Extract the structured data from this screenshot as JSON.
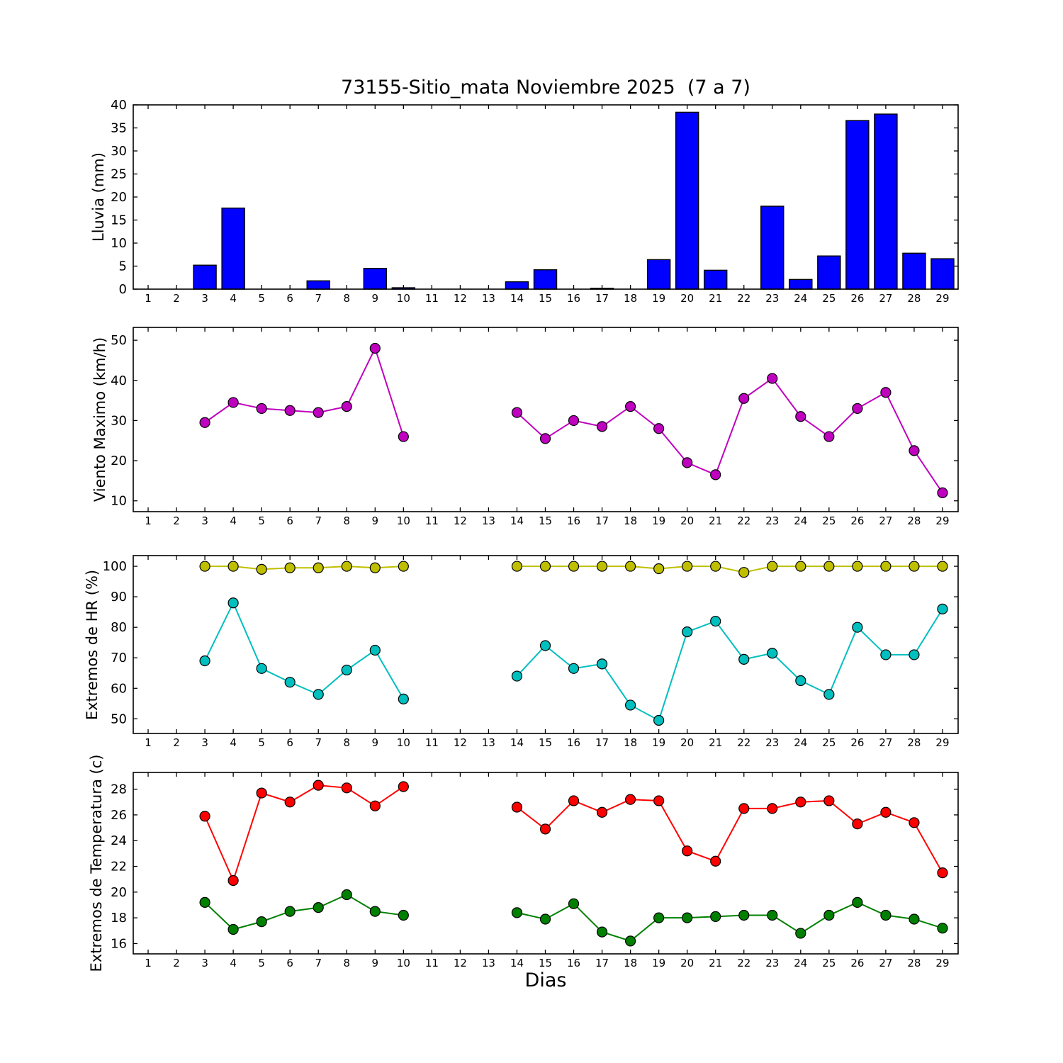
{
  "figure": {
    "title": "73155-Sitio_mata Noviembre 2025  (7 a 7)",
    "xlabel": "Dias",
    "background": "#ffffff"
  },
  "chart_data": [
    {
      "type": "bar",
      "name": "lluvia",
      "ylabel": "Lluvia (mm)",
      "color": "#0000ff",
      "categories": [
        1,
        2,
        3,
        4,
        5,
        6,
        7,
        8,
        9,
        10,
        11,
        12,
        13,
        14,
        15,
        16,
        17,
        18,
        19,
        20,
        21,
        22,
        23,
        24,
        25,
        26,
        27,
        28,
        29
      ],
      "values": [
        null,
        null,
        5.2,
        17.6,
        0,
        0,
        1.8,
        0,
        4.5,
        0.3,
        null,
        null,
        null,
        1.6,
        4.2,
        0,
        0.2,
        0,
        6.4,
        38.4,
        4.1,
        0,
        18.0,
        2.1,
        7.2,
        36.6,
        38.0,
        7.8,
        6.6
      ],
      "ylim": [
        0,
        40
      ],
      "yticks": [
        0,
        5,
        10,
        15,
        20,
        25,
        30,
        35,
        40
      ],
      "xlim": [
        0.475,
        29.55
      ],
      "grid": false
    },
    {
      "type": "line",
      "name": "viento",
      "ylabel": "Viento Maximo (km/h)",
      "categories": [
        1,
        2,
        3,
        4,
        5,
        6,
        7,
        8,
        9,
        10,
        11,
        12,
        13,
        14,
        15,
        16,
        17,
        18,
        19,
        20,
        21,
        22,
        23,
        24,
        25,
        26,
        27,
        28,
        29
      ],
      "series": [
        {
          "name": "viento-maximo",
          "color": "#bf00bf",
          "values": [
            null,
            null,
            29.5,
            34.5,
            33,
            32.5,
            32,
            33.5,
            48,
            26,
            null,
            null,
            null,
            32,
            25.5,
            30,
            28.5,
            33.5,
            28,
            19.5,
            16.5,
            35.5,
            40.5,
            31,
            26,
            33,
            37,
            22.5,
            12
          ]
        }
      ],
      "ylim": [
        7.3,
        53.2
      ],
      "yticks": [
        10,
        20,
        30,
        40,
        50
      ],
      "xlim": [
        0.475,
        29.55
      ],
      "grid": false
    },
    {
      "type": "line",
      "name": "hr",
      "ylabel": "Extremos de HR (%)",
      "categories": [
        1,
        2,
        3,
        4,
        5,
        6,
        7,
        8,
        9,
        10,
        11,
        12,
        13,
        14,
        15,
        16,
        17,
        18,
        19,
        20,
        21,
        22,
        23,
        24,
        25,
        26,
        27,
        28,
        29
      ],
      "series": [
        {
          "name": "hr-maxima",
          "color": "#bfbf00",
          "values": [
            null,
            null,
            100,
            100,
            99,
            99.5,
            99.5,
            100,
            99.5,
            100,
            null,
            null,
            null,
            100,
            100,
            100,
            100,
            100,
            99.2,
            100,
            100,
            98,
            100,
            100,
            100,
            100,
            100,
            100,
            100
          ]
        },
        {
          "name": "hr-minima",
          "color": "#00bfbf",
          "values": [
            null,
            null,
            69,
            88,
            66.5,
            62,
            58,
            66,
            72.5,
            56.5,
            null,
            null,
            null,
            64,
            74,
            66.5,
            68,
            54.5,
            49.5,
            78.5,
            82,
            69.5,
            71.5,
            62.5,
            58,
            80,
            71,
            71,
            86
          ]
        }
      ],
      "ylim": [
        45.2,
        103.5
      ],
      "yticks": [
        50,
        60,
        70,
        80,
        90,
        100
      ],
      "xlim": [
        0.475,
        29.55
      ],
      "grid": false
    },
    {
      "type": "line",
      "name": "temperatura",
      "ylabel": "Extremos de Temperatura (c)",
      "categories": [
        1,
        2,
        3,
        4,
        5,
        6,
        7,
        8,
        9,
        10,
        11,
        12,
        13,
        14,
        15,
        16,
        17,
        18,
        19,
        20,
        21,
        22,
        23,
        24,
        25,
        26,
        27,
        28,
        29
      ],
      "series": [
        {
          "name": "temperatura-maxima",
          "color": "#ff0000",
          "values": [
            null,
            null,
            25.9,
            20.9,
            27.7,
            27.0,
            28.3,
            28.1,
            26.7,
            28.2,
            null,
            null,
            null,
            26.6,
            24.9,
            27.1,
            26.2,
            27.2,
            27.1,
            23.2,
            22.4,
            26.5,
            26.5,
            27.0,
            27.1,
            25.3,
            26.2,
            25.4,
            21.5
          ]
        },
        {
          "name": "temperatura-minima",
          "color": "#008000",
          "values": [
            null,
            null,
            19.2,
            17.1,
            17.7,
            18.5,
            18.8,
            19.8,
            18.5,
            18.2,
            null,
            null,
            null,
            18.4,
            17.9,
            19.1,
            16.9,
            16.2,
            18.0,
            18.0,
            18.1,
            18.2,
            18.2,
            16.8,
            18.2,
            19.2,
            18.2,
            17.9,
            17.2
          ]
        }
      ],
      "ylim": [
        15.2,
        29.3
      ],
      "yticks": [
        16,
        18,
        20,
        22,
        24,
        26,
        28
      ],
      "xlim": [
        0.475,
        29.55
      ],
      "grid": false
    }
  ]
}
